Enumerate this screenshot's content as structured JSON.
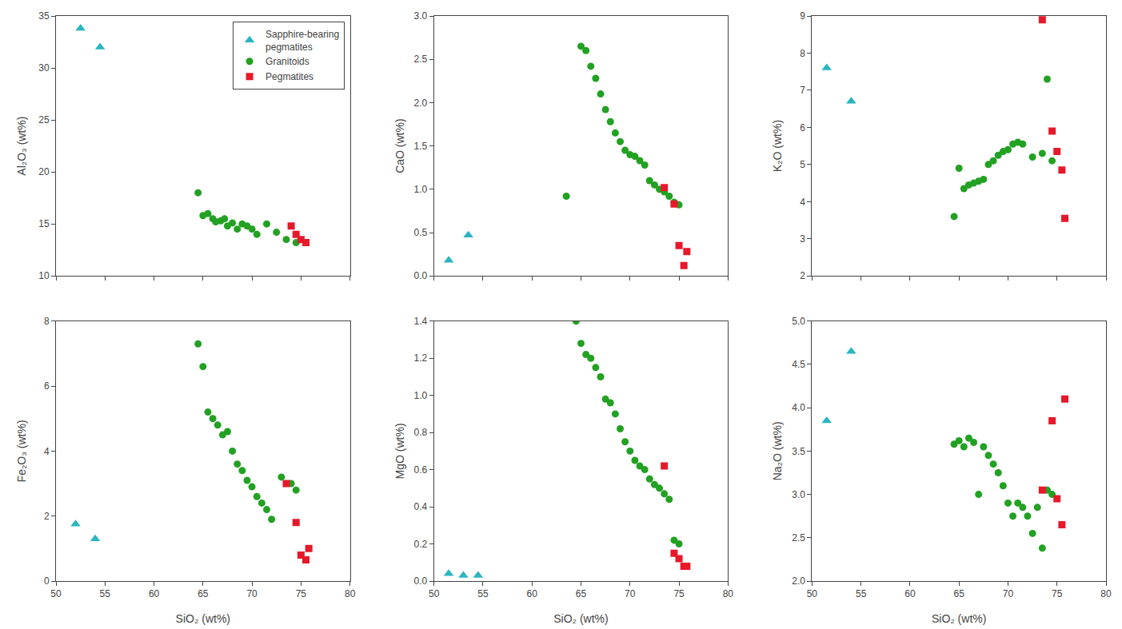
{
  "chart_data": [
    {
      "type": "scatter",
      "ylabel": "Al₂O₃ (wt%)",
      "xlim": [
        50,
        80
      ],
      "xticks": [
        50,
        55,
        60,
        65,
        70,
        75,
        80
      ],
      "ylim": [
        10,
        35
      ],
      "yticks": [
        10,
        15,
        20,
        25,
        30,
        35
      ],
      "grid": false,
      "tick_labels": "y",
      "legend": "upper right",
      "series": [
        {
          "name": "Sapphire-bearing\npegmatites",
          "color": "#2AB5C0",
          "marker": "triangle",
          "x": [
            52.5,
            54.5
          ],
          "values": [
            33.8,
            32.0
          ]
        },
        {
          "name": "Granitoids",
          "color": "#22A122",
          "marker": "circle",
          "x": [
            64.5,
            65.0,
            65.5,
            66.0,
            66.3,
            66.8,
            67.2,
            67.5,
            68.0,
            68.5,
            69.0,
            69.5,
            70.0,
            70.5,
            71.5,
            72.5,
            73.5,
            74.5
          ],
          "values": [
            18.0,
            15.8,
            16.0,
            15.5,
            15.2,
            15.3,
            15.5,
            14.8,
            15.1,
            14.5,
            15.0,
            14.8,
            14.5,
            14.0,
            15.0,
            14.2,
            13.5,
            13.2
          ]
        },
        {
          "name": "Pegmatites",
          "color": "#E5192A",
          "marker": "square",
          "x": [
            74.0,
            74.5,
            75.0,
            75.5
          ],
          "values": [
            14.8,
            14.0,
            13.5,
            13.2
          ]
        }
      ]
    },
    {
      "type": "scatter",
      "ylabel": "CaO (wt%)",
      "xlim": [
        50,
        80
      ],
      "xticks": [
        50,
        55,
        60,
        65,
        70,
        75,
        80
      ],
      "ylim": [
        0.0,
        3.0
      ],
      "yticks": [
        {
          "value": 0.0,
          "label": "0.0"
        },
        0.5,
        {
          "value": 1.0,
          "label": "1.0"
        },
        1.5,
        {
          "value": 2.0,
          "label": "2.0"
        },
        2.5,
        {
          "value": 3.0,
          "label": "3.0"
        }
      ],
      "grid": false,
      "tick_labels": "y",
      "series": [
        {
          "name": "Sapphire-bearing\npegmatites",
          "color": "#2AB5C0",
          "marker": "triangle",
          "x": [
            51.5,
            53.5
          ],
          "values": [
            0.18,
            0.47
          ]
        },
        {
          "name": "Granitoids",
          "color": "#22A122",
          "marker": "circle",
          "x": [
            63.5,
            65.0,
            65.5,
            66.0,
            66.5,
            67.0,
            67.5,
            68.0,
            68.5,
            69.0,
            69.5,
            70.0,
            70.5,
            71.0,
            71.5,
            72.0,
            72.5,
            73.0,
            73.5,
            74.0,
            74.5,
            75.0
          ],
          "values": [
            0.92,
            2.65,
            2.6,
            2.42,
            2.28,
            2.1,
            1.92,
            1.78,
            1.65,
            1.55,
            1.45,
            1.4,
            1.38,
            1.33,
            1.28,
            1.1,
            1.05,
            1.0,
            0.97,
            0.92,
            0.85,
            0.82
          ]
        },
        {
          "name": "Pegmatites",
          "color": "#E5192A",
          "marker": "square",
          "x": [
            73.5,
            74.5,
            75.0,
            75.5,
            75.8
          ],
          "values": [
            1.02,
            0.83,
            0.35,
            0.12,
            0.28
          ]
        }
      ]
    },
    {
      "type": "scatter",
      "ylabel": "K₂O (wt%)",
      "xlim": [
        50,
        80
      ],
      "xticks": [
        50,
        55,
        60,
        65,
        70,
        75,
        80
      ],
      "ylim": [
        2,
        9
      ],
      "yticks": [
        2,
        3,
        4,
        5,
        6,
        7,
        8,
        9
      ],
      "grid": false,
      "tick_labels": "y",
      "series": [
        {
          "name": "Sapphire-bearing\npegmatites",
          "color": "#2AB5C0",
          "marker": "triangle",
          "x": [
            51.5,
            54.0
          ],
          "values": [
            7.6,
            6.7
          ]
        },
        {
          "name": "Granitoids",
          "color": "#22A122",
          "marker": "circle",
          "x": [
            64.5,
            65.0,
            65.5,
            66.0,
            66.5,
            67.0,
            67.5,
            68.0,
            68.5,
            69.0,
            69.5,
            70.0,
            70.5,
            71.0,
            71.5,
            72.5,
            73.5,
            74.0,
            74.5
          ],
          "values": [
            3.6,
            4.9,
            4.35,
            4.45,
            4.5,
            4.55,
            4.6,
            5.0,
            5.1,
            5.25,
            5.35,
            5.4,
            5.55,
            5.6,
            5.55,
            5.2,
            5.3,
            7.3,
            5.1
          ]
        },
        {
          "name": "Pegmatites",
          "color": "#E5192A",
          "marker": "square",
          "x": [
            73.5,
            74.5,
            75.0,
            75.5,
            75.8
          ],
          "values": [
            8.9,
            5.9,
            5.35,
            4.85,
            3.55
          ]
        }
      ]
    },
    {
      "type": "scatter",
      "ylabel": "Fe₂O₃ (wt%)",
      "xlabel": "SiO₂ (wt%)",
      "xlim": [
        50,
        80
      ],
      "xticks": [
        50,
        55,
        60,
        65,
        70,
        75,
        80
      ],
      "ylim": [
        0,
        8
      ],
      "yticks": [
        0,
        2,
        4,
        6,
        8
      ],
      "grid": false,
      "series": [
        {
          "name": "Sapphire-bearing\npegmatites",
          "color": "#2AB5C0",
          "marker": "triangle",
          "x": [
            52.0,
            54.0
          ],
          "values": [
            1.75,
            1.3
          ]
        },
        {
          "name": "Granitoids",
          "color": "#22A122",
          "marker": "circle",
          "x": [
            64.5,
            65.0,
            65.5,
            66.0,
            66.5,
            67.0,
            67.5,
            68.0,
            68.5,
            69.0,
            69.5,
            70.0,
            70.5,
            71.0,
            71.5,
            72.0,
            73.0,
            74.0,
            74.5
          ],
          "values": [
            7.3,
            6.6,
            5.2,
            5.0,
            4.8,
            4.5,
            4.6,
            4.0,
            3.6,
            3.4,
            3.1,
            2.9,
            2.6,
            2.4,
            2.2,
            1.9,
            3.2,
            3.0,
            2.8
          ]
        },
        {
          "name": "Pegmatites",
          "color": "#E5192A",
          "marker": "square",
          "x": [
            73.5,
            74.5,
            75.0,
            75.5,
            75.8
          ],
          "values": [
            3.0,
            1.8,
            0.8,
            0.65,
            1.0
          ]
        }
      ]
    },
    {
      "type": "scatter",
      "ylabel": "MgO (wt%)",
      "xlabel": "SiO₂ (wt%)",
      "xlim": [
        50,
        80
      ],
      "xticks": [
        50,
        55,
        60,
        65,
        70,
        75,
        80
      ],
      "ylim": [
        0.0,
        1.4
      ],
      "yticks": [
        {
          "value": 0.0,
          "label": "0.0"
        },
        0.2,
        0.4,
        0.6,
        0.8,
        {
          "value": 1.0,
          "label": "1.0"
        },
        1.2,
        1.4
      ],
      "grid": false,
      "series": [
        {
          "name": "Sapphire-bearing\npegmatites",
          "color": "#2AB5C0",
          "marker": "triangle",
          "x": [
            51.5,
            53.0,
            54.5
          ],
          "values": [
            0.04,
            0.03,
            0.03
          ]
        },
        {
          "name": "Granitoids",
          "color": "#22A122",
          "marker": "circle",
          "x": [
            64.5,
            65.0,
            65.5,
            66.0,
            66.5,
            67.0,
            67.5,
            68.0,
            68.5,
            69.0,
            69.5,
            70.0,
            70.5,
            71.0,
            71.5,
            72.0,
            72.5,
            73.0,
            73.5,
            74.0,
            74.5,
            75.0
          ],
          "values": [
            1.4,
            1.28,
            1.22,
            1.2,
            1.15,
            1.1,
            0.98,
            0.96,
            0.9,
            0.82,
            0.75,
            0.7,
            0.65,
            0.62,
            0.6,
            0.55,
            0.52,
            0.5,
            0.47,
            0.44,
            0.22,
            0.2
          ]
        },
        {
          "name": "Pegmatites",
          "color": "#E5192A",
          "marker": "square",
          "x": [
            73.5,
            74.5,
            75.0,
            75.5,
            75.8
          ],
          "values": [
            0.62,
            0.15,
            0.12,
            0.08,
            0.08
          ]
        }
      ]
    },
    {
      "type": "scatter",
      "ylabel": "Na₂O (wt%)",
      "xlabel": "SiO₂ (wt%)",
      "xlim": [
        50,
        80
      ],
      "xticks": [
        50,
        55,
        60,
        65,
        70,
        75,
        80
      ],
      "ylim": [
        2.0,
        5.0
      ],
      "yticks": [
        {
          "value": 2.0,
          "label": "2.0"
        },
        2.5,
        {
          "value": 3.0,
          "label": "3.0"
        },
        3.5,
        {
          "value": 4.0,
          "label": "4.0"
        },
        4.5,
        {
          "value": 5.0,
          "label": "5.0"
        }
      ],
      "grid": false,
      "series": [
        {
          "name": "Sapphire-bearing\npegmatites",
          "color": "#2AB5C0",
          "marker": "triangle",
          "x": [
            51.5,
            54.0
          ],
          "values": [
            3.85,
            4.65
          ]
        },
        {
          "name": "Granitoids",
          "color": "#22A122",
          "marker": "circle",
          "x": [
            64.5,
            65.0,
            65.5,
            66.0,
            66.5,
            67.0,
            67.5,
            68.0,
            68.5,
            69.0,
            69.5,
            70.0,
            70.5,
            71.0,
            71.5,
            72.0,
            72.5,
            73.0,
            73.5,
            74.0,
            74.5
          ],
          "values": [
            3.58,
            3.62,
            3.55,
            3.65,
            3.6,
            3.0,
            3.55,
            3.45,
            3.35,
            3.25,
            3.1,
            2.9,
            2.75,
            2.9,
            2.85,
            2.75,
            2.55,
            2.85,
            2.38,
            3.05,
            3.0
          ]
        },
        {
          "name": "Pegmatites",
          "color": "#E5192A",
          "marker": "square",
          "x": [
            73.5,
            74.5,
            75.0,
            75.5,
            75.8
          ],
          "values": [
            3.05,
            3.85,
            2.95,
            2.65,
            4.1
          ]
        }
      ]
    }
  ]
}
